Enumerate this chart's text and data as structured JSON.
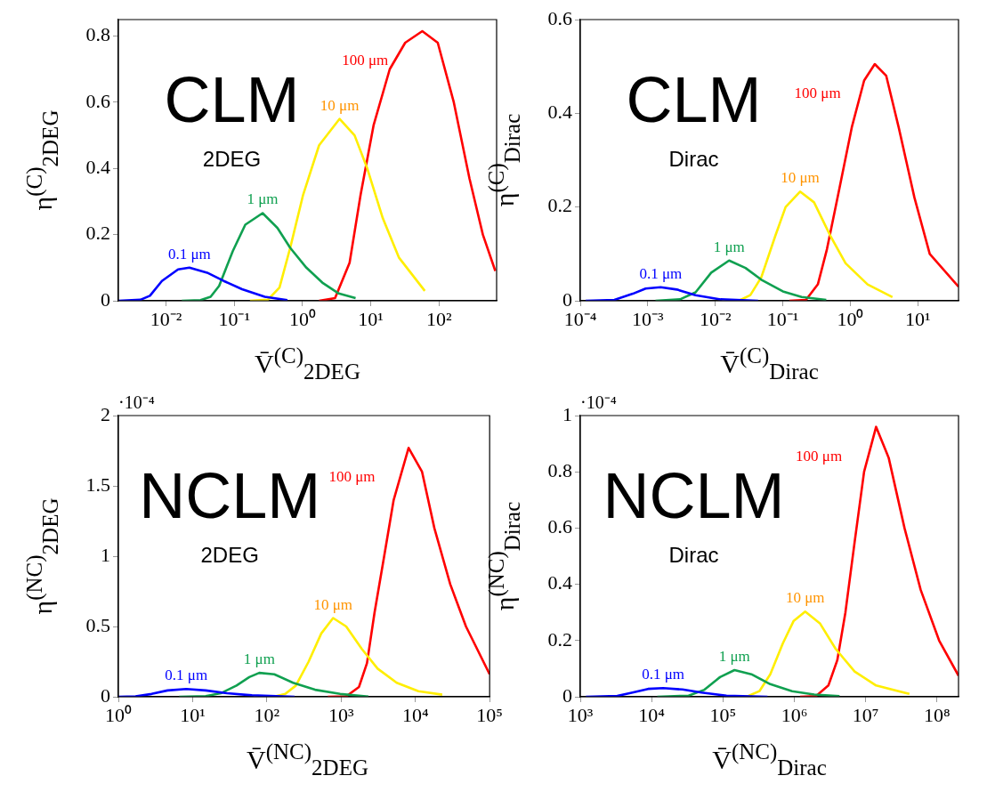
{
  "chart_data": [
    {
      "type": "line",
      "xlabel": "V̄$^{(C)}$$_{2DEG}$",
      "ylabel": "η$^{(C)}$$_{2DEG}$",
      "log": "x",
      "grid": false,
      "marker": "none",
      "line_style": "solid",
      "annotations": [
        "CLM",
        "2DEG"
      ],
      "xlim": [
        0.002,
        700
      ],
      "ylim": [
        0,
        0.85
      ],
      "xticks": [
        {
          "value": 0.01,
          "label": "10⁻²"
        },
        {
          "value": 0.1,
          "label": "10⁻¹"
        },
        {
          "value": 1,
          "label": "10⁰"
        },
        {
          "value": 10,
          "label": "10¹"
        },
        {
          "value": 100,
          "label": "10²"
        }
      ],
      "yticks": [
        0,
        0.2,
        0.4,
        0.6,
        0.8
      ],
      "series": [
        {
          "name": "0.1 μm",
          "color": "#0000ff",
          "x": [
            0.002,
            0.0042,
            0.0058,
            0.0087,
            0.015,
            0.022,
            0.04,
            0.07,
            0.13,
            0.28,
            0.6
          ],
          "values": [
            0,
            0.003,
            0.015,
            0.06,
            0.095,
            0.1,
            0.085,
            0.06,
            0.035,
            0.012,
            0.002
          ]
        },
        {
          "name": "1 μm",
          "color": "#10a050",
          "x": [
            0.017,
            0.032,
            0.045,
            0.06,
            0.095,
            0.145,
            0.26,
            0.43,
            0.66,
            1.14,
            1.95,
            3.4,
            6
          ],
          "values": [
            0,
            0.002,
            0.012,
            0.045,
            0.15,
            0.23,
            0.265,
            0.22,
            0.16,
            0.1,
            0.055,
            0.022,
            0.008
          ]
        },
        {
          "name": "10 μm",
          "color": "#ffee00",
          "x": [
            0.17,
            0.31,
            0.46,
            0.66,
            1.02,
            1.75,
            3.5,
            5.8,
            8.9,
            15,
            26,
            62
          ],
          "values": [
            0,
            0.003,
            0.04,
            0.16,
            0.32,
            0.47,
            0.55,
            0.5,
            0.4,
            0.25,
            0.13,
            0.03
          ]
        },
        {
          "name": "100 μm",
          "color": "#ff0000",
          "x": [
            1.75,
            3,
            4.9,
            7.1,
            11,
            19,
            32,
            57,
            96,
            165,
            280,
            440,
            670
          ],
          "values": [
            0,
            0.008,
            0.115,
            0.32,
            0.53,
            0.7,
            0.78,
            0.815,
            0.78,
            0.6,
            0.37,
            0.2,
            0.09
          ]
        }
      ]
    },
    {
      "type": "line",
      "xlabel": "V̄$^{(C)}$$_{Dirac}$",
      "ylabel": "η$^{(C)}$$_{Dirac}$",
      "log": "x",
      "grid": false,
      "marker": "none",
      "line_style": "solid",
      "annotations": [
        "CLM",
        "Dirac"
      ],
      "xlim": [
        0.0001,
        40
      ],
      "ylim": [
        0,
        0.6
      ],
      "xticks": [
        {
          "value": 0.0001,
          "label": "10⁻⁴"
        },
        {
          "value": 0.001,
          "label": "10⁻³"
        },
        {
          "value": 0.01,
          "label": "10⁻²"
        },
        {
          "value": 0.1,
          "label": "10⁻¹"
        },
        {
          "value": 1,
          "label": "10⁰"
        },
        {
          "value": 10,
          "label": "10¹"
        }
      ],
      "yticks": [
        0,
        0.2,
        0.4,
        0.6
      ],
      "series": [
        {
          "name": "0.1 μm",
          "color": "#0000ff",
          "x": [
            0.00012,
            0.00032,
            0.0006,
            0.00093,
            0.00155,
            0.0027,
            0.0051,
            0.012,
            0.043
          ],
          "values": [
            0,
            0.002,
            0.015,
            0.026,
            0.029,
            0.024,
            0.012,
            0.003,
            0
          ]
        },
        {
          "name": "1 μm",
          "color": "#10a050",
          "x": [
            0.0013,
            0.003,
            0.0051,
            0.0087,
            0.016,
            0.028,
            0.048,
            0.1,
            0.19,
            0.44
          ],
          "values": [
            0,
            0.003,
            0.018,
            0.06,
            0.086,
            0.07,
            0.045,
            0.02,
            0.008,
            0.002
          ]
        },
        {
          "name": "10 μm",
          "color": "#ffee00",
          "x": [
            0.0126,
            0.023,
            0.033,
            0.048,
            0.078,
            0.11,
            0.18,
            0.29,
            0.5,
            0.85,
            1.8,
            4.2
          ],
          "values": [
            0,
            0.001,
            0.012,
            0.05,
            0.14,
            0.2,
            0.233,
            0.21,
            0.14,
            0.08,
            0.035,
            0.008
          ]
        },
        {
          "name": "100 μm",
          "color": "#ff0000",
          "x": [
            0.125,
            0.22,
            0.33,
            0.45,
            0.69,
            1.05,
            1.6,
            2.3,
            3.4,
            5.2,
            8.9,
            15,
            40
          ],
          "values": [
            0,
            0.002,
            0.035,
            0.11,
            0.24,
            0.37,
            0.47,
            0.505,
            0.48,
            0.37,
            0.22,
            0.1,
            0.03
          ]
        }
      ]
    },
    {
      "type": "line",
      "xlabel": "V̄$^{(NC)}$$_{2DEG}$",
      "ylabel": "η$^{(NC)}$$_{2DEG}$",
      "log": "x",
      "grid": false,
      "marker": "none",
      "line_style": "solid",
      "annotations": [
        "NCLM",
        "2DEG",
        "·10⁻⁴"
      ],
      "xlim": [
        1,
        100000
      ],
      "ylim": [
        0,
        2
      ],
      "xticks": [
        {
          "value": 1,
          "label": "10⁰"
        },
        {
          "value": 10,
          "label": "10¹"
        },
        {
          "value": 100,
          "label": "10²"
        },
        {
          "value": 1000,
          "label": "10³"
        },
        {
          "value": 10000,
          "label": "10⁴"
        },
        {
          "value": 100000,
          "label": "10⁵"
        }
      ],
      "yticks": [
        0,
        0.5,
        1,
        1.5,
        2
      ],
      "series": [
        {
          "name": "0.1 μm",
          "color": "#0000ff",
          "x": [
            1,
            1.7,
            2.8,
            4.6,
            8.2,
            15,
            29,
            63,
            236
          ],
          "values": [
            0,
            0.003,
            0.02,
            0.045,
            0.055,
            0.045,
            0.025,
            0.01,
            0
          ]
        },
        {
          "name": "1 μm",
          "color": "#10a050",
          "x": [
            6.6,
            15,
            24,
            39,
            58,
            79,
            126,
            225,
            445,
            970,
            2330
          ],
          "values": [
            0,
            0.005,
            0.025,
            0.08,
            0.14,
            0.17,
            0.16,
            0.1,
            0.05,
            0.02,
            0.002
          ]
        },
        {
          "name": "10 μm",
          "color": "#ffee00",
          "x": [
            66,
            126,
            177,
            246,
            365,
            540,
            780,
            1170,
            1900,
            3100,
            5600,
            11000,
            23000
          ],
          "values": [
            0,
            0.002,
            0.02,
            0.08,
            0.25,
            0.45,
            0.56,
            0.5,
            0.34,
            0.2,
            0.1,
            0.04,
            0.015
          ]
        },
        {
          "name": "100 μm",
          "color": "#ff0000",
          "x": [
            660,
            1170,
            1740,
            2230,
            2820,
            3800,
            5100,
            8100,
            12300,
            18000,
            29500,
            48000,
            100000
          ],
          "values": [
            0,
            0.003,
            0.07,
            0.24,
            0.6,
            1.0,
            1.4,
            1.77,
            1.6,
            1.2,
            0.8,
            0.5,
            0.16
          ]
        }
      ]
    },
    {
      "type": "line",
      "xlabel": "V̄$^{(NC)}$$_{Dirac}$",
      "ylabel": "η$^{(NC)}$$_{Dirac}$",
      "log": "x",
      "grid": false,
      "marker": "none",
      "line_style": "solid",
      "annotations": [
        "NCLM",
        "Dirac",
        "·10⁻⁴"
      ],
      "xlim": [
        1000,
        200000000
      ],
      "ylim": [
        0,
        1
      ],
      "xticks": [
        {
          "value": 1000,
          "label": "10³"
        },
        {
          "value": 10000,
          "label": "10⁴"
        },
        {
          "value": 100000,
          "label": "10⁵"
        },
        {
          "value": 1000000,
          "label": "10⁶"
        },
        {
          "value": 10000000,
          "label": "10⁷"
        },
        {
          "value": 100000000,
          "label": "10⁸"
        }
      ],
      "yticks": [
        0,
        0.2,
        0.4,
        0.6,
        0.8,
        1
      ],
      "series": [
        {
          "name": "0.1 μm",
          "color": "#0000ff",
          "x": [
            1200,
            3300,
            5400,
            8900,
            14500,
            27000,
            50000,
            112000,
            420000
          ],
          "values": [
            0,
            0.003,
            0.015,
            0.028,
            0.031,
            0.026,
            0.015,
            0.004,
            0
          ]
        },
        {
          "name": "1 μm",
          "color": "#10a050",
          "x": [
            12000,
            33000,
            55000,
            91000,
            145000,
            250000,
            460000,
            930000,
            1900000,
            4300000
          ],
          "values": [
            0,
            0.004,
            0.025,
            0.07,
            0.095,
            0.08,
            0.045,
            0.02,
            0.008,
            0.002
          ]
        },
        {
          "name": "10 μm",
          "color": "#ffee00",
          "x": [
            118000,
            228000,
            324000,
            460000,
            690000,
            980000,
            1420000,
            2300000,
            3800000,
            7000000,
            14000000,
            41000000
          ],
          "values": [
            0,
            0.003,
            0.02,
            0.08,
            0.19,
            0.27,
            0.303,
            0.26,
            0.17,
            0.09,
            0.04,
            0.01
          ]
        },
        {
          "name": "100 μm",
          "color": "#ff0000",
          "x": [
            1200000,
            2000000,
            3000000,
            4000000,
            5200000,
            7000000,
            9500000,
            14000000,
            21000000,
            35000000,
            59000000,
            107000000,
            200000000
          ],
          "values": [
            0,
            0.002,
            0.04,
            0.13,
            0.3,
            0.55,
            0.8,
            0.96,
            0.85,
            0.6,
            0.38,
            0.2,
            0.075
          ]
        }
      ]
    }
  ]
}
